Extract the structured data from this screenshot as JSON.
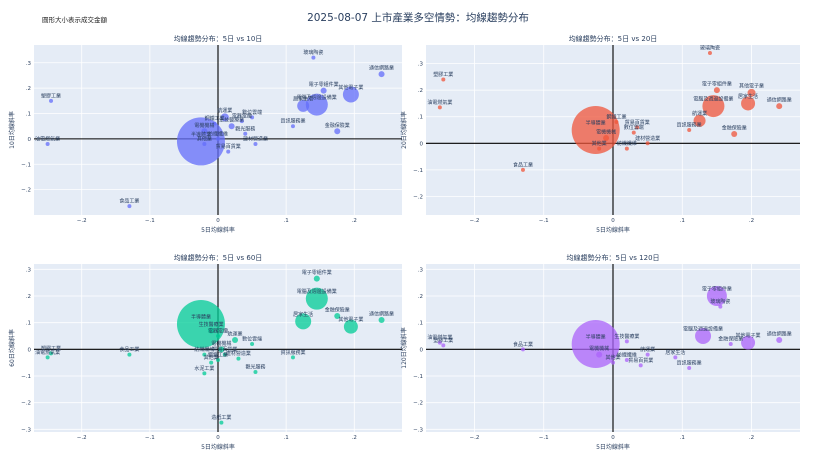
{
  "page": {
    "title": "2025-08-07 上市產業多空情勢：均線趨勢分布",
    "size_note": "圓形大小表示成交金額"
  },
  "colors": {
    "panel_bg": "#e5ecf6",
    "grid": "#ffffff",
    "zero_line": "#000000",
    "p1": "#636efa",
    "p2": "#ef553b",
    "p3": "#00cc96",
    "p4": "#ab63fa"
  },
  "chart_data": [
    {
      "type": "scatter",
      "title": "均線趨勢分布：5日 vs 10日",
      "xlabel": "5日均線斜率",
      "ylabel": "10日均線斜率",
      "xlim": [
        -0.27,
        0.27
      ],
      "ylim": [
        -0.3,
        0.37
      ],
      "xticks": [
        -0.2,
        -0.1,
        0,
        0.1,
        0.2
      ],
      "yticks": [
        -0.2,
        -0.1,
        0,
        0.1,
        0.2,
        0.3
      ],
      "points": [
        {
          "label": "塑膠工業",
          "x": -0.245,
          "y": 0.15,
          "size": 2
        },
        {
          "label": "油電燃氣業",
          "x": -0.25,
          "y": -0.02,
          "size": 2
        },
        {
          "label": "食品工業",
          "x": -0.13,
          "y": -0.265,
          "size": 2
        },
        {
          "label": "半導體業",
          "x": -0.025,
          "y": -0.01,
          "size": 24
        },
        {
          "label": "玻璃陶瓷",
          "x": 0.14,
          "y": 0.32,
          "size": 2
        },
        {
          "label": "通信網路業",
          "x": 0.24,
          "y": 0.255,
          "size": 3
        },
        {
          "label": "其他電子業",
          "x": 0.195,
          "y": 0.175,
          "size": 8
        },
        {
          "label": "電子零組件業",
          "x": 0.155,
          "y": 0.19,
          "size": 3
        },
        {
          "label": "電腦及週邊設備業",
          "x": 0.145,
          "y": 0.135,
          "size": 11
        },
        {
          "label": "居家生活",
          "x": 0.125,
          "y": 0.13,
          "size": 6
        },
        {
          "label": "金融保險業",
          "x": 0.175,
          "y": 0.03,
          "size": 3
        },
        {
          "label": "資訊服務業",
          "x": 0.11,
          "y": 0.05,
          "size": 2
        },
        {
          "label": "數位雲端",
          "x": 0.05,
          "y": 0.085,
          "size": 2
        },
        {
          "label": "航運業",
          "x": 0.01,
          "y": 0.085,
          "size": 4
        },
        {
          "label": "電器電纜",
          "x": 0.035,
          "y": 0.07,
          "size": 2
        },
        {
          "label": "觀光服務",
          "x": 0.04,
          "y": 0.02,
          "size": 2
        },
        {
          "label": "鋼鐵工業",
          "x": -0.005,
          "y": 0.06,
          "size": 2
        },
        {
          "label": "電機機械",
          "x": -0.02,
          "y": 0.03,
          "size": 3
        },
        {
          "label": "生技醫療業",
          "x": 0.02,
          "y": 0.05,
          "size": 3
        },
        {
          "label": "建材營造業",
          "x": 0.055,
          "y": -0.02,
          "size": 2
        },
        {
          "label": "紡織纖維",
          "x": 0.0,
          "y": 0.0,
          "size": 2
        },
        {
          "label": "其他業",
          "x": -0.02,
          "y": -0.02,
          "size": 2
        },
        {
          "label": "貿易百貨業",
          "x": 0.015,
          "y": -0.05,
          "size": 2
        }
      ]
    },
    {
      "type": "scatter",
      "title": "均線趨勢分布：5日 vs 20日",
      "xlabel": "5日均線斜率",
      "ylabel": "20日均線斜率",
      "xlim": [
        -0.27,
        0.27
      ],
      "ylim": [
        -0.27,
        0.37
      ],
      "xticks": [
        -0.2,
        -0.1,
        0,
        0.1,
        0.2
      ],
      "yticks": [
        -0.2,
        -0.1,
        0,
        0.1,
        0.2,
        0.3
      ],
      "points": [
        {
          "label": "塑膠工業",
          "x": -0.245,
          "y": 0.24,
          "size": 2
        },
        {
          "label": "油電燃氣業",
          "x": -0.25,
          "y": 0.135,
          "size": 2
        },
        {
          "label": "食品工業",
          "x": -0.13,
          "y": -0.1,
          "size": 2
        },
        {
          "label": "半導體業",
          "x": -0.025,
          "y": 0.05,
          "size": 24
        },
        {
          "label": "玻璃陶瓷",
          "x": 0.14,
          "y": 0.34,
          "size": 2
        },
        {
          "label": "電子零組件業",
          "x": 0.15,
          "y": 0.2,
          "size": 3
        },
        {
          "label": "其他電子業",
          "x": 0.2,
          "y": 0.19,
          "size": 4
        },
        {
          "label": "通信網路業",
          "x": 0.24,
          "y": 0.14,
          "size": 3
        },
        {
          "label": "電腦及週邊設備業",
          "x": 0.145,
          "y": 0.14,
          "size": 11
        },
        {
          "label": "居家生活",
          "x": 0.195,
          "y": 0.15,
          "size": 7
        },
        {
          "label": "資訊服務業",
          "x": 0.11,
          "y": 0.05,
          "size": 2
        },
        {
          "label": "金融保險業",
          "x": 0.175,
          "y": 0.035,
          "size": 3
        },
        {
          "label": "航運業",
          "x": 0.125,
          "y": 0.085,
          "size": 6
        },
        {
          "label": "數位雲端",
          "x": 0.03,
          "y": 0.04,
          "size": 2
        },
        {
          "label": "鋼鐵工業",
          "x": 0.005,
          "y": 0.08,
          "size": 2
        },
        {
          "label": "電機機械",
          "x": -0.01,
          "y": 0.02,
          "size": 3
        },
        {
          "label": "建材營造業",
          "x": 0.05,
          "y": 0.0,
          "size": 2
        },
        {
          "label": "紡織纖維",
          "x": 0.02,
          "y": -0.02,
          "size": 2
        },
        {
          "label": "其他業",
          "x": -0.02,
          "y": -0.02,
          "size": 2
        },
        {
          "label": "貿易百貨業",
          "x": 0.035,
          "y": 0.06,
          "size": 2
        }
      ]
    },
    {
      "type": "scatter",
      "title": "均線趨勢分布：5日 vs 60日",
      "xlabel": "5日均線斜率",
      "ylabel": "60日均線斜率",
      "xlim": [
        -0.27,
        0.27
      ],
      "ylim": [
        -0.31,
        0.32
      ],
      "xticks": [
        -0.2,
        -0.1,
        0,
        0.1,
        0.2
      ],
      "yticks": [
        -0.3,
        -0.2,
        -0.1,
        0,
        0.1,
        0.2,
        0.3
      ],
      "points": [
        {
          "label": "塑膠工業",
          "x": -0.245,
          "y": -0.015,
          "size": 2
        },
        {
          "label": "油電燃氣業",
          "x": -0.25,
          "y": -0.03,
          "size": 2
        },
        {
          "label": "食品工業",
          "x": -0.13,
          "y": -0.02,
          "size": 2
        },
        {
          "label": "半導體業",
          "x": -0.025,
          "y": 0.095,
          "size": 24
        },
        {
          "label": "電腦及週邊設備業",
          "x": 0.145,
          "y": 0.19,
          "size": 11
        },
        {
          "label": "電子零組件業",
          "x": 0.145,
          "y": 0.265,
          "size": 3
        },
        {
          "label": "居家生活",
          "x": 0.125,
          "y": 0.105,
          "size": 8
        },
        {
          "label": "金融保險業",
          "x": 0.175,
          "y": 0.125,
          "size": 3
        },
        {
          "label": "其他電子業",
          "x": 0.195,
          "y": 0.085,
          "size": 7
        },
        {
          "label": "通信網路業",
          "x": 0.24,
          "y": 0.11,
          "size": 3
        },
        {
          "label": "生技醫療業",
          "x": -0.01,
          "y": 0.07,
          "size": 3
        },
        {
          "label": "電器電纜",
          "x": 0.0,
          "y": 0.05,
          "size": 2
        },
        {
          "label": "數位雲端",
          "x": 0.05,
          "y": 0.02,
          "size": 2
        },
        {
          "label": "航運業",
          "x": 0.025,
          "y": 0.035,
          "size": 3
        },
        {
          "label": "資訊服務業",
          "x": 0.11,
          "y": -0.03,
          "size": 2
        },
        {
          "label": "建材營造業",
          "x": 0.03,
          "y": -0.035,
          "size": 2
        },
        {
          "label": "觀光服務",
          "x": 0.055,
          "y": -0.085,
          "size": 2
        },
        {
          "label": "紡織纖維",
          "x": -0.02,
          "y": -0.02,
          "size": 2
        },
        {
          "label": "其他業",
          "x": -0.01,
          "y": -0.05,
          "size": 2
        },
        {
          "label": "水泥工業",
          "x": -0.02,
          "y": -0.09,
          "size": 2
        },
        {
          "label": "電機機械",
          "x": 0.005,
          "y": 0.0,
          "size": 3
        },
        {
          "label": "貿易百貨業",
          "x": 0.01,
          "y": -0.02,
          "size": 2
        },
        {
          "label": "鋼鐵工業",
          "x": 0.0,
          "y": -0.04,
          "size": 2
        },
        {
          "label": "造紙工業",
          "x": 0.005,
          "y": -0.275,
          "size": 2
        }
      ]
    },
    {
      "type": "scatter",
      "title": "均線趨勢分布：5日 vs 120日",
      "xlabel": "5日均線斜率",
      "ylabel": "120日均線斜率",
      "xlim": [
        -0.27,
        0.27
      ],
      "ylim": [
        -0.31,
        0.32
      ],
      "xticks": [
        -0.2,
        -0.1,
        0,
        0.1,
        0.2
      ],
      "yticks": [
        -0.3,
        -0.2,
        -0.1,
        0,
        0.1,
        0.2,
        0.3
      ],
      "points": [
        {
          "label": "塑膠工業",
          "x": -0.245,
          "y": 0.015,
          "size": 2
        },
        {
          "label": "油電燃氣業",
          "x": -0.25,
          "y": 0.025,
          "size": 2
        },
        {
          "label": "食品工業",
          "x": -0.13,
          "y": 0.0,
          "size": 2
        },
        {
          "label": "半導體業",
          "x": -0.025,
          "y": 0.02,
          "size": 24
        },
        {
          "label": "電子零組件業",
          "x": 0.15,
          "y": 0.2,
          "size": 10
        },
        {
          "label": "玻璃陶瓷",
          "x": 0.155,
          "y": 0.16,
          "size": 2
        },
        {
          "label": "電腦及週邊設備業",
          "x": 0.13,
          "y": 0.05,
          "size": 8
        },
        {
          "label": "其他電子業",
          "x": 0.195,
          "y": 0.025,
          "size": 7
        },
        {
          "label": "通信網路業",
          "x": 0.24,
          "y": 0.035,
          "size": 3
        },
        {
          "label": "金融保險業",
          "x": 0.17,
          "y": 0.02,
          "size": 2
        },
        {
          "label": "居家生活",
          "x": 0.09,
          "y": -0.03,
          "size": 2
        },
        {
          "label": "資訊服務業",
          "x": 0.11,
          "y": -0.07,
          "size": 2
        },
        {
          "label": "生技醫療業",
          "x": 0.02,
          "y": 0.03,
          "size": 2
        },
        {
          "label": "電機機械",
          "x": -0.02,
          "y": -0.02,
          "size": 3
        },
        {
          "label": "其他業",
          "x": 0.0,
          "y": -0.05,
          "size": 2
        },
        {
          "label": "紡織纖維",
          "x": 0.02,
          "y": -0.04,
          "size": 2
        },
        {
          "label": "航運業",
          "x": 0.05,
          "y": -0.02,
          "size": 2
        },
        {
          "label": "貿易百貨業",
          "x": 0.04,
          "y": -0.06,
          "size": 2
        }
      ]
    }
  ]
}
